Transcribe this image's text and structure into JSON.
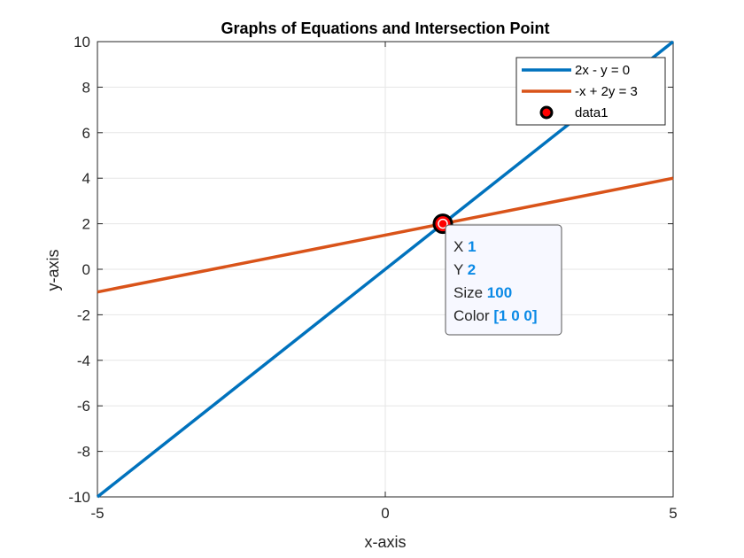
{
  "chart_data": {
    "type": "line",
    "title": "Graphs of Equations and Intersection Point",
    "xlabel": "x-axis",
    "ylabel": "y-axis",
    "xlim": [
      -5,
      5
    ],
    "ylim": [
      -10,
      10
    ],
    "xticks": [
      -5,
      0,
      5
    ],
    "xtick_labels": [
      "-5",
      "0",
      "5"
    ],
    "yticks": [
      -10,
      -8,
      -6,
      -4,
      -2,
      0,
      2,
      4,
      6,
      8,
      10
    ],
    "ytick_labels": [
      "-10",
      "-8",
      "-6",
      "-4",
      "-2",
      "0",
      "2",
      "4",
      "6",
      "8",
      "10"
    ],
    "grid": true,
    "legend_position": "top-right",
    "series": [
      {
        "name": "2x - y = 0",
        "color": "#0072BD",
        "type": "line",
        "x": [
          -5,
          5
        ],
        "y": [
          -10,
          10
        ]
      },
      {
        "name": "-x + 2y = 3",
        "color": "#D95319",
        "type": "line",
        "x": [
          -5,
          5
        ],
        "y": [
          -1,
          4
        ]
      },
      {
        "name": "data1",
        "type": "scatter",
        "x": [
          1
        ],
        "y": [
          2
        ],
        "marker_fill": "#FF0000",
        "marker_edge": "#000000"
      }
    ],
    "datatip": {
      "rows": [
        {
          "key": "X",
          "value": "1"
        },
        {
          "key": "Y",
          "value": "2"
        },
        {
          "key": "Size",
          "value": "100"
        },
        {
          "key": "Color",
          "value": "[1 0 0]"
        }
      ]
    }
  }
}
